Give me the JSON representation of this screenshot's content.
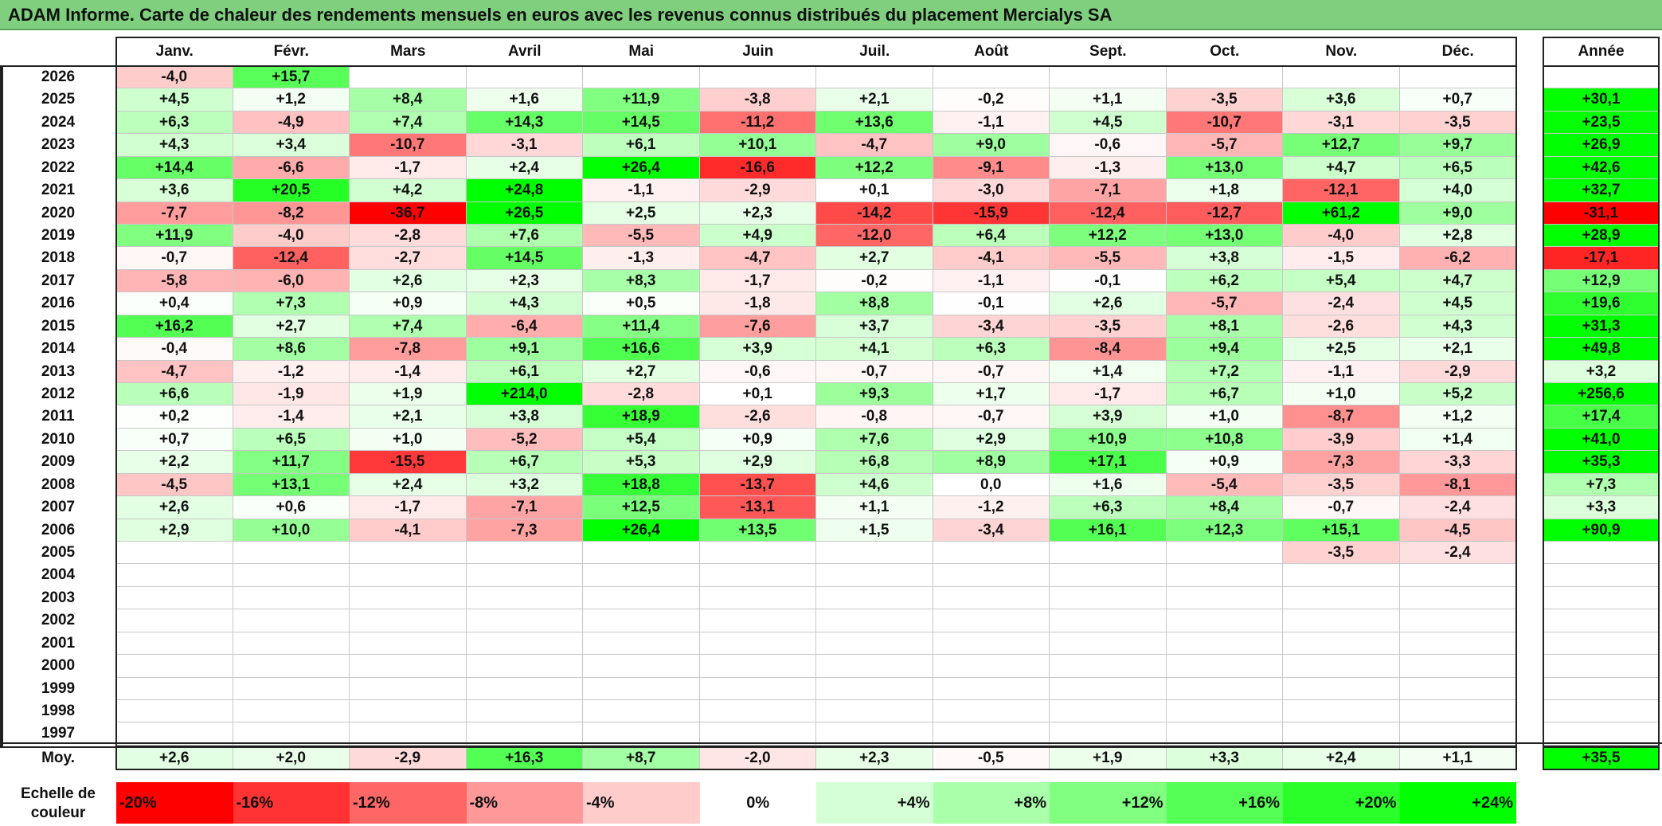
{
  "title": "ADAM Informe. Carte de chaleur des rendements mensuels en euros avec les revenus connus distribués du placement Mercialys SA",
  "chart_data": {
    "type": "heatmap",
    "columns": [
      "Janv.",
      "Févr.",
      "Mars",
      "Avril",
      "Mai",
      "Juin",
      "Juil.",
      "Août",
      "Sept.",
      "Oct.",
      "Nov.",
      "Déc."
    ],
    "year_header": "Année",
    "rows": [
      {
        "year": "2026",
        "values": [
          "-4,0",
          "+15,7",
          "",
          "",
          "",
          "",
          "",
          "",
          "",
          "",
          "",
          ""
        ],
        "annual": ""
      },
      {
        "year": "2025",
        "values": [
          "+4,5",
          "+1,2",
          "+8,4",
          "+1,6",
          "+11,9",
          "-3,8",
          "+2,1",
          "-0,2",
          "+1,1",
          "-3,5",
          "+3,6",
          "+0,7"
        ],
        "annual": "+30,1"
      },
      {
        "year": "2024",
        "values": [
          "+6,3",
          "-4,9",
          "+7,4",
          "+14,3",
          "+14,5",
          "-11,2",
          "+13,6",
          "-1,1",
          "+4,5",
          "-10,7",
          "-3,1",
          "-3,5"
        ],
        "annual": "+23,5"
      },
      {
        "year": "2023",
        "values": [
          "+4,3",
          "+3,4",
          "-10,7",
          "-3,1",
          "+6,1",
          "+10,1",
          "-4,7",
          "+9,0",
          "-0,6",
          "-5,7",
          "+12,7",
          "+9,7"
        ],
        "annual": "+26,9"
      },
      {
        "year": "2022",
        "values": [
          "+14,4",
          "-6,6",
          "-1,7",
          "+2,4",
          "+26,4",
          "-16,6",
          "+12,2",
          "-9,1",
          "-1,3",
          "+13,0",
          "+4,7",
          "+6,5"
        ],
        "annual": "+42,6"
      },
      {
        "year": "2021",
        "values": [
          "+3,6",
          "+20,5",
          "+4,2",
          "+24,8",
          "-1,1",
          "-2,9",
          "+0,1",
          "-3,0",
          "-7,1",
          "+1,8",
          "-12,1",
          "+4,0"
        ],
        "annual": "+32,7"
      },
      {
        "year": "2020",
        "values": [
          "-7,7",
          "-8,2",
          "-36,7",
          "+26,5",
          "+2,5",
          "+2,3",
          "-14,2",
          "-15,9",
          "-12,4",
          "-12,7",
          "+61,2",
          "+9,0"
        ],
        "annual": "-31,1"
      },
      {
        "year": "2019",
        "values": [
          "+11,9",
          "-4,0",
          "-2,8",
          "+7,6",
          "-5,5",
          "+4,9",
          "-12,0",
          "+6,4",
          "+12,2",
          "+13,0",
          "-4,0",
          "+2,8"
        ],
        "annual": "+28,9"
      },
      {
        "year": "2018",
        "values": [
          "-0,7",
          "-12,4",
          "-2,7",
          "+14,5",
          "-1,3",
          "-4,7",
          "+2,7",
          "-4,1",
          "-5,5",
          "+3,8",
          "-1,5",
          "-6,2"
        ],
        "annual": "-17,1"
      },
      {
        "year": "2017",
        "values": [
          "-5,8",
          "-6,0",
          "+2,6",
          "+2,3",
          "+8,3",
          "-1,7",
          "-0,2",
          "-1,1",
          "-0,1",
          "+6,2",
          "+5,4",
          "+4,7"
        ],
        "annual": "+12,9"
      },
      {
        "year": "2016",
        "values": [
          "+0,4",
          "+7,3",
          "+0,9",
          "+4,3",
          "+0,5",
          "-1,8",
          "+8,8",
          "-0,1",
          "+2,6",
          "-5,7",
          "-2,4",
          "+4,5"
        ],
        "annual": "+19,6"
      },
      {
        "year": "2015",
        "values": [
          "+16,2",
          "+2,7",
          "+7,4",
          "-6,4",
          "+11,4",
          "-7,6",
          "+3,7",
          "-3,4",
          "-3,5",
          "+8,1",
          "-2,6",
          "+4,3"
        ],
        "annual": "+31,3"
      },
      {
        "year": "2014",
        "values": [
          "-0,4",
          "+8,6",
          "-7,8",
          "+9,1",
          "+16,6",
          "+3,9",
          "+4,1",
          "+6,3",
          "-8,4",
          "+9,4",
          "+2,5",
          "+2,1"
        ],
        "annual": "+49,8"
      },
      {
        "year": "2013",
        "values": [
          "-4,7",
          "-1,2",
          "-1,4",
          "+6,1",
          "+2,7",
          "-0,6",
          "-0,7",
          "-0,7",
          "+1,4",
          "+7,2",
          "-1,1",
          "-2,9"
        ],
        "annual": "+3,2"
      },
      {
        "year": "2012",
        "values": [
          "+6,6",
          "-1,9",
          "+1,9",
          "+214,0",
          "-2,8",
          "+0,1",
          "+9,3",
          "+1,7",
          "-1,7",
          "+6,7",
          "+1,0",
          "+5,2"
        ],
        "annual": "+256,6"
      },
      {
        "year": "2011",
        "values": [
          "+0,2",
          "-1,4",
          "+2,1",
          "+3,8",
          "+18,9",
          "-2,6",
          "-0,8",
          "-0,7",
          "+3,9",
          "+1,0",
          "-8,7",
          "+1,2"
        ],
        "annual": "+17,4"
      },
      {
        "year": "2010",
        "values": [
          "+0,7",
          "+6,5",
          "+1,0",
          "-5,2",
          "+5,4",
          "+0,9",
          "+7,6",
          "+2,9",
          "+10,9",
          "+10,8",
          "-3,9",
          "+1,4"
        ],
        "annual": "+41,0"
      },
      {
        "year": "2009",
        "values": [
          "+2,2",
          "+11,7",
          "-15,5",
          "+6,7",
          "+5,3",
          "+2,9",
          "+6,8",
          "+8,9",
          "+17,1",
          "+0,9",
          "-7,3",
          "-3,3"
        ],
        "annual": "+35,3"
      },
      {
        "year": "2008",
        "values": [
          "-4,5",
          "+13,1",
          "+2,4",
          "+3,2",
          "+18,8",
          "-13,7",
          "+4,6",
          "0,0",
          "+1,6",
          "-5,4",
          "-3,5",
          "-8,1"
        ],
        "annual": "+7,3"
      },
      {
        "year": "2007",
        "values": [
          "+2,6",
          "+0,6",
          "-1,7",
          "-7,1",
          "+12,5",
          "-13,1",
          "+1,1",
          "-1,2",
          "+6,3",
          "+8,4",
          "-0,7",
          "-2,4"
        ],
        "annual": "+3,3"
      },
      {
        "year": "2006",
        "values": [
          "+2,9",
          "+10,0",
          "-4,1",
          "-7,3",
          "+26,4",
          "+13,5",
          "+1,5",
          "-3,4",
          "+16,1",
          "+12,3",
          "+15,1",
          "-4,5"
        ],
        "annual": "+90,9"
      },
      {
        "year": "2005",
        "values": [
          "",
          "",
          "",
          "",
          "",
          "",
          "",
          "",
          "",
          "",
          "-3,5",
          "-2,4"
        ],
        "annual": ""
      },
      {
        "year": "2004",
        "values": [
          "",
          "",
          "",
          "",
          "",
          "",
          "",
          "",
          "",
          "",
          "",
          ""
        ],
        "annual": ""
      },
      {
        "year": "2003",
        "values": [
          "",
          "",
          "",
          "",
          "",
          "",
          "",
          "",
          "",
          "",
          "",
          ""
        ],
        "annual": ""
      },
      {
        "year": "2002",
        "values": [
          "",
          "",
          "",
          "",
          "",
          "",
          "",
          "",
          "",
          "",
          "",
          ""
        ],
        "annual": ""
      },
      {
        "year": "2001",
        "values": [
          "",
          "",
          "",
          "",
          "",
          "",
          "",
          "",
          "",
          "",
          "",
          ""
        ],
        "annual": ""
      },
      {
        "year": "2000",
        "values": [
          "",
          "",
          "",
          "",
          "",
          "",
          "",
          "",
          "",
          "",
          "",
          ""
        ],
        "annual": ""
      },
      {
        "year": "1999",
        "values": [
          "",
          "",
          "",
          "",
          "",
          "",
          "",
          "",
          "",
          "",
          "",
          ""
        ],
        "annual": ""
      },
      {
        "year": "1998",
        "values": [
          "",
          "",
          "",
          "",
          "",
          "",
          "",
          "",
          "",
          "",
          "",
          ""
        ],
        "annual": ""
      },
      {
        "year": "1997",
        "values": [
          "",
          "",
          "",
          "",
          "",
          "",
          "",
          "",
          "",
          "",
          "",
          ""
        ],
        "annual": ""
      }
    ],
    "average": {
      "label": "Moy.",
      "values": [
        "+2,6",
        "+2,0",
        "-2,9",
        "+16,3",
        "+8,7",
        "-2,0",
        "+2,3",
        "-0,5",
        "+1,9",
        "+3,3",
        "+2,4",
        "+1,1"
      ],
      "annual": "+35,5"
    },
    "scale": {
      "label_line1": "Echelle de",
      "label_line2": "couleur",
      "steps": [
        "-20%",
        "-16%",
        "-12%",
        "-8%",
        "-4%",
        "0%",
        "+4%",
        "+8%",
        "+12%",
        "+16%",
        "+20%",
        "+24%"
      ],
      "step_values": [
        -20,
        -16,
        -12,
        -8,
        -4,
        0,
        4,
        8,
        12,
        16,
        20,
        24
      ]
    },
    "colors": {
      "negative_max": "#ff0000",
      "zero": "#ffffff",
      "positive_max": "#00ff00",
      "title_bar": "#7fcf7f"
    }
  }
}
